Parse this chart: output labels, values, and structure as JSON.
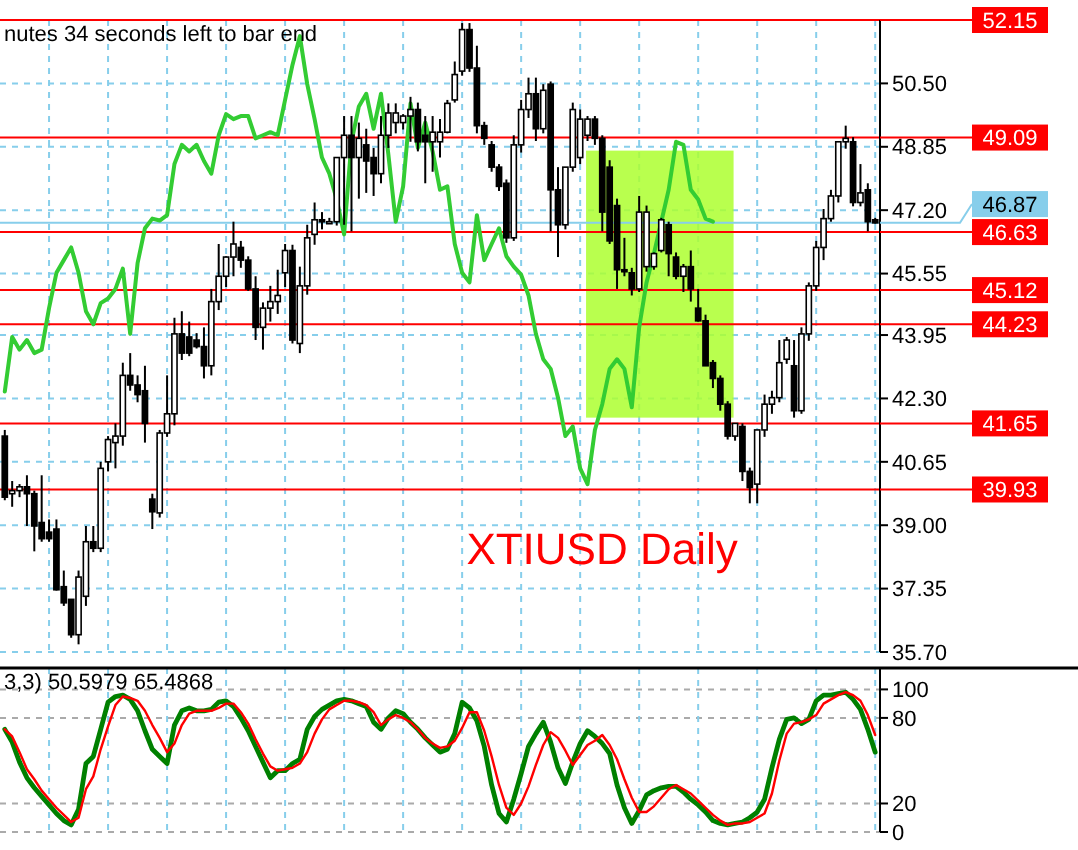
{
  "chart_data": [
    {
      "type": "candlestick",
      "title": "XTIUSD Daily",
      "annotations": [
        "nutes 34 seconds left to bar end"
      ],
      "categories": [
        null,
        null,
        null,
        null,
        null,
        null,
        null,
        null,
        null,
        null,
        null,
        null,
        null,
        null,
        null,
        null,
        null,
        null,
        null,
        null,
        null,
        null,
        null,
        null,
        null,
        null,
        null,
        null,
        null,
        null,
        null,
        null,
        null,
        null,
        null,
        null,
        null,
        null,
        null,
        null,
        null,
        null,
        null,
        null,
        null,
        null,
        null,
        null,
        null,
        null,
        null,
        null,
        null,
        null,
        null,
        null,
        null,
        null,
        null,
        null,
        null,
        null,
        null,
        null,
        null,
        null,
        null,
        null,
        null,
        null,
        null,
        null,
        null,
        null,
        null,
        null,
        null,
        null,
        null,
        null,
        null,
        null,
        null,
        null,
        null,
        null,
        null,
        null,
        null,
        null,
        null,
        null,
        null,
        null,
        null,
        null,
        null,
        null,
        null,
        null,
        null,
        null,
        null,
        null,
        null,
        null,
        null,
        null,
        null,
        null,
        null,
        null,
        null,
        null,
        null,
        null,
        null,
        null,
        null
      ],
      "ohlc": [
        [
          41.32,
          41.48,
          39.65,
          39.73
        ],
        [
          39.82,
          40.15,
          39.48,
          39.9
        ],
        [
          39.9,
          40.07,
          39.73,
          40.0
        ],
        [
          40.0,
          40.3,
          38.98,
          39.82
        ],
        [
          39.82,
          39.9,
          38.32,
          38.98
        ],
        [
          39.07,
          40.3,
          38.57,
          38.65
        ],
        [
          38.82,
          39.15,
          38.57,
          38.65
        ],
        [
          38.9,
          39.15,
          37.3,
          37.32
        ],
        [
          37.4,
          37.82,
          36.9,
          36.98
        ],
        [
          37.07,
          37.07,
          36.07,
          36.15
        ],
        [
          36.15,
          37.82,
          35.9,
          37.65
        ],
        [
          37.15,
          38.98,
          36.9,
          38.57
        ],
        [
          38.57,
          38.98,
          38.3,
          38.4
        ],
        [
          38.4,
          40.65,
          38.3,
          40.48
        ],
        [
          40.65,
          41.32,
          40.4,
          41.23
        ],
        [
          41.15,
          41.65,
          40.48,
          41.32
        ],
        [
          41.32,
          43.23,
          41.07,
          42.9
        ],
        [
          42.9,
          43.48,
          42.5,
          42.65
        ],
        [
          42.65,
          42.9,
          42.2,
          42.4
        ],
        [
          42.5,
          43.15,
          41.15,
          41.65
        ],
        [
          39.68,
          39.82,
          38.9,
          39.35
        ],
        [
          39.32,
          41.48,
          39.2,
          41.4
        ],
        [
          41.4,
          42.9,
          41.3,
          41.9
        ],
        [
          41.9,
          44.4,
          41.6,
          43.98
        ],
        [
          43.98,
          44.57,
          43.3,
          43.48
        ],
        [
          43.9,
          44.3,
          43.4,
          43.48
        ],
        [
          43.82,
          44.0,
          43.6,
          43.65
        ],
        [
          43.65,
          44.15,
          42.82,
          43.15
        ],
        [
          43.15,
          45.15,
          42.9,
          44.82
        ],
        [
          44.82,
          46.32,
          44.6,
          45.48
        ],
        [
          45.48,
          46.0,
          45.2,
          45.98
        ],
        [
          45.98,
          46.9,
          45.48,
          46.32
        ],
        [
          46.23,
          46.4,
          45.7,
          45.9
        ],
        [
          45.9,
          46.0,
          45.1,
          45.15
        ],
        [
          45.15,
          45.48,
          43.82,
          44.15
        ],
        [
          44.15,
          44.8,
          43.57,
          44.65
        ],
        [
          44.65,
          45.23,
          44.3,
          44.82
        ],
        [
          44.82,
          45.65,
          44.5,
          44.98
        ],
        [
          45.57,
          46.32,
          45.2,
          46.15
        ],
        [
          46.15,
          46.3,
          43.73,
          43.82
        ],
        [
          43.73,
          45.73,
          43.48,
          45.23
        ],
        [
          45.23,
          46.82,
          45.0,
          46.48
        ],
        [
          46.57,
          47.4,
          46.3,
          46.95
        ],
        [
          46.95,
          47.15,
          46.7,
          46.9
        ],
        [
          46.9,
          47.0,
          46.85,
          46.9
        ],
        [
          46.9,
          48.57,
          46.8,
          48.57
        ],
        [
          48.57,
          49.65,
          46.82,
          49.15
        ],
        [
          49.15,
          49.65,
          46.65,
          48.57
        ],
        [
          48.57,
          49.48,
          47.5,
          49.07
        ],
        [
          48.9,
          49.32,
          47.65,
          48.48
        ],
        [
          48.57,
          48.82,
          47.57,
          48.15
        ],
        [
          48.15,
          49.65,
          47.9,
          49.15
        ],
        [
          49.15,
          49.98,
          48.82,
          49.73
        ],
        [
          49.48,
          49.98,
          49.2,
          49.73
        ],
        [
          49.48,
          49.7,
          49.3,
          49.65
        ],
        [
          49.65,
          50.15,
          48.98,
          49.82
        ],
        [
          49.82,
          50.0,
          48.73,
          48.98
        ],
        [
          49.15,
          49.65,
          47.9,
          48.98
        ],
        [
          48.98,
          49.65,
          48.2,
          49.23
        ],
        [
          48.98,
          49.57,
          48.57,
          49.23
        ],
        [
          49.23,
          50.07,
          49.2,
          49.98
        ],
        [
          50.07,
          51.07,
          50.0,
          50.73
        ],
        [
          50.82,
          52.07,
          50.7,
          51.9
        ],
        [
          51.9,
          52.07,
          50.8,
          50.9
        ],
        [
          50.9,
          51.48,
          49.2,
          49.4
        ],
        [
          49.4,
          49.5,
          48.9,
          49.07
        ],
        [
          48.9,
          49.0,
          48.2,
          48.32
        ],
        [
          48.32,
          48.4,
          47.7,
          47.82
        ],
        [
          47.9,
          48.0,
          46.35,
          46.48
        ],
        [
          46.48,
          49.15,
          46.4,
          48.9
        ],
        [
          48.9,
          50.07,
          48.7,
          49.82
        ],
        [
          49.82,
          50.65,
          49.6,
          50.23
        ],
        [
          50.23,
          50.65,
          49.0,
          49.32
        ],
        [
          49.32,
          50.48,
          49.2,
          50.32
        ],
        [
          50.48,
          50.55,
          46.65,
          47.73
        ],
        [
          47.73,
          48.32,
          45.98,
          46.82
        ],
        [
          46.82,
          48.32,
          46.7,
          48.32
        ],
        [
          48.32,
          50.0,
          48.2,
          49.82
        ],
        [
          48.57,
          49.82,
          48.4,
          49.57
        ],
        [
          49.15,
          49.65,
          49.0,
          49.57
        ],
        [
          49.57,
          49.65,
          48.9,
          49.07
        ],
        [
          49.07,
          49.15,
          46.65,
          47.15
        ],
        [
          48.32,
          48.5,
          46.32,
          46.4
        ],
        [
          47.32,
          47.5,
          45.15,
          45.65
        ],
        [
          45.65,
          46.48,
          45.48,
          45.6
        ],
        [
          45.57,
          45.7,
          44.98,
          45.15
        ],
        [
          45.15,
          47.57,
          45.07,
          47.15
        ],
        [
          45.73,
          47.32,
          45.6,
          47.15
        ],
        [
          45.73,
          46.1,
          45.65,
          46.07
        ],
        [
          46.15,
          47.0,
          46.1,
          46.95
        ],
        [
          46.82,
          46.9,
          45.48,
          46.07
        ],
        [
          45.98,
          46.1,
          45.4,
          45.48
        ],
        [
          45.48,
          45.8,
          45.07,
          45.73
        ],
        [
          45.73,
          46.15,
          44.82,
          45.15
        ],
        [
          44.65,
          45.15,
          44.3,
          44.32
        ],
        [
          44.32,
          44.48,
          43.15,
          43.15
        ],
        [
          43.23,
          43.3,
          42.57,
          42.82
        ],
        [
          42.82,
          42.9,
          41.98,
          42.15
        ],
        [
          42.15,
          42.23,
          41.23,
          41.32
        ],
        [
          41.32,
          41.65,
          41.2,
          41.65
        ],
        [
          41.57,
          41.65,
          40.15,
          40.4
        ],
        [
          40.4,
          40.5,
          39.57,
          39.98
        ],
        [
          40.07,
          41.48,
          39.57,
          41.48
        ],
        [
          41.48,
          42.4,
          41.3,
          42.15
        ],
        [
          42.15,
          42.5,
          41.9,
          42.32
        ],
        [
          42.32,
          43.82,
          42.2,
          43.23
        ],
        [
          43.32,
          43.9,
          43.2,
          43.82
        ],
        [
          43.15,
          43.82,
          41.8,
          41.98
        ],
        [
          41.98,
          44.15,
          41.9,
          43.98
        ],
        [
          43.98,
          45.32,
          43.8,
          45.23
        ],
        [
          45.23,
          46.4,
          45.1,
          46.23
        ],
        [
          46.23,
          47.23,
          45.9,
          46.98
        ],
        [
          46.98,
          47.73,
          46.9,
          47.57
        ],
        [
          47.57,
          48.98,
          47.4,
          48.98
        ],
        [
          48.98,
          49.4,
          48.8,
          49.07
        ],
        [
          48.98,
          49.1,
          47.3,
          47.4
        ],
        [
          47.4,
          48.4,
          47.3,
          47.65
        ],
        [
          47.73,
          47.9,
          46.65,
          46.9
        ],
        [
          46.95,
          47.0,
          46.85,
          46.87
        ]
      ],
      "series": [
        {
          "type": "line",
          "color": "#33cc33",
          "values": [
            42.48,
            43.9,
            43.57,
            43.82,
            43.48,
            43.57,
            44.65,
            45.57,
            45.9,
            46.23,
            45.57,
            44.57,
            44.23,
            44.78,
            44.9,
            45.15,
            45.68,
            43.98,
            45.82,
            46.73,
            46.98,
            46.93,
            47.07,
            48.4,
            48.9,
            48.73,
            48.9,
            48.48,
            48.15,
            49.15,
            49.7,
            49.57,
            49.65,
            49.65,
            49.07,
            49.15,
            49.23,
            49.15,
            50.07,
            50.98,
            51.73,
            50.48,
            49.57,
            48.57,
            48.15,
            47.48,
            46.57,
            48.98,
            49.9,
            50.23,
            49.32,
            50.23,
            48.65,
            46.9,
            47.82,
            49.98,
            48.82,
            49.48,
            48.73,
            47.73,
            47.82,
            46.32,
            45.57,
            45.32,
            47.07,
            45.9,
            46.32,
            46.73,
            46.0,
            45.73,
            45.52,
            44.98,
            43.98,
            43.32,
            43.07,
            42.32,
            41.32,
            41.57,
            40.48,
            40.07,
            41.48,
            42.15,
            43.07,
            43.32,
            43.07,
            42.07,
            44.15,
            45.32,
            46.07,
            46.9,
            47.73,
            48.98,
            48.9,
            47.73,
            47.48,
            46.98,
            46.9,
            null,
            null,
            null,
            null,
            null,
            null,
            null,
            null,
            null,
            null,
            null,
            null,
            null,
            null,
            null,
            null,
            null,
            null,
            null,
            null,
            null,
            null
          ]
        }
      ],
      "ylim": [
        35.7,
        52.15
      ],
      "yticks": [
        {
          "value": 35.7,
          "label": "35.70"
        },
        {
          "value": 37.35,
          "label": "37.35"
        },
        {
          "value": 39.0,
          "label": "39.00"
        },
        {
          "value": 40.65,
          "label": "40.65"
        },
        {
          "value": 42.3,
          "label": "42.30"
        },
        {
          "value": 43.95,
          "label": "43.95"
        },
        {
          "value": 45.55,
          "label": "45.55"
        },
        {
          "value": 47.2,
          "label": "47.20"
        },
        {
          "value": 48.85,
          "label": "48.85"
        },
        {
          "value": 50.5,
          "label": "50.50"
        }
      ],
      "ref_lines": [
        {
          "axis": "y",
          "value": 52.15,
          "label": "52.15",
          "color": "#ff0000"
        },
        {
          "axis": "y",
          "value": 49.09,
          "label": "49.09",
          "color": "#ff0000"
        },
        {
          "axis": "y",
          "value": 46.87,
          "label": "46.87",
          "color": "#87ceeb"
        },
        {
          "axis": "y",
          "value": 46.63,
          "label": "46.63",
          "color": "#ff0000"
        },
        {
          "axis": "y",
          "value": 45.12,
          "label": "45.12",
          "color": "#ff0000"
        },
        {
          "axis": "y",
          "value": 44.23,
          "label": "44.23",
          "color": "#ff0000"
        },
        {
          "axis": "y",
          "value": 41.65,
          "label": "41.65",
          "color": "#ff0000"
        },
        {
          "axis": "y",
          "value": 39.93,
          "label": "39.93",
          "color": "#ff0000"
        }
      ],
      "grid": true,
      "tick_labels": "y"
    },
    {
      "type": "line",
      "annotations": [
        "3,3) 50.5979 65.4868"
      ],
      "categories": [
        null,
        null,
        null,
        null,
        null,
        null,
        null,
        null,
        null,
        null,
        null,
        null,
        null,
        null,
        null,
        null,
        null,
        null,
        null,
        null,
        null,
        null,
        null,
        null,
        null,
        null,
        null,
        null,
        null,
        null,
        null,
        null,
        null,
        null,
        null,
        null,
        null,
        null,
        null,
        null,
        null,
        null,
        null,
        null,
        null,
        null,
        null,
        null,
        null,
        null,
        null,
        null,
        null,
        null,
        null,
        null,
        null,
        null,
        null,
        null,
        null,
        null,
        null,
        null,
        null,
        null,
        null,
        null,
        null,
        null,
        null,
        null,
        null,
        null,
        null,
        null,
        null,
        null,
        null,
        null,
        null,
        null,
        null,
        null,
        null,
        null,
        null,
        null,
        null,
        null,
        null,
        null,
        null,
        null,
        null,
        null,
        null,
        null,
        null,
        null,
        null,
        null,
        null,
        null,
        null,
        null,
        null,
        null,
        null,
        null,
        null,
        null,
        null,
        null,
        null,
        null,
        null,
        null,
        null
      ],
      "series": [
        {
          "color": "#008000",
          "values": [
            72,
            63,
            49,
            38,
            31,
            25,
            19,
            13,
            8,
            5,
            16,
            48,
            53,
            72,
            91,
            95,
            96,
            93,
            85,
            71,
            58,
            53,
            48,
            75,
            85,
            87,
            85,
            85,
            86,
            91,
            92,
            88,
            80,
            71,
            60,
            49,
            38,
            43,
            43,
            48,
            51,
            72,
            81,
            86,
            89,
            92,
            93,
            92,
            90,
            88,
            77,
            72,
            80,
            85,
            83,
            77,
            72,
            66,
            61,
            56,
            58,
            69,
            91,
            87,
            78,
            60,
            33,
            13,
            7,
            23,
            41,
            60,
            69,
            77,
            63,
            45,
            34,
            49,
            62,
            71,
            67,
            62,
            55,
            33,
            17,
            6,
            15,
            26,
            29,
            31,
            32,
            32,
            28,
            23,
            19,
            14,
            8,
            6,
            5,
            6,
            7,
            10,
            14,
            23,
            45,
            65,
            79,
            80,
            76,
            79,
            92,
            96,
            96,
            97,
            98,
            93,
            86,
            72,
            56
          ]
        },
        {
          "color": "#ff0000",
          "values": [
            72,
            67,
            56,
            44,
            37,
            29,
            23,
            17,
            12,
            7,
            10,
            30,
            39,
            58,
            74,
            89,
            95,
            94,
            92,
            85,
            75,
            66,
            56,
            62,
            75,
            83,
            85,
            85,
            85,
            87,
            90,
            90,
            84,
            76,
            65,
            55,
            46,
            43,
            44,
            45,
            48,
            56,
            69,
            79,
            86,
            89,
            92,
            92,
            91,
            89,
            84,
            75,
            79,
            82,
            80,
            77,
            72,
            66,
            62,
            59,
            60,
            64,
            73,
            84,
            84,
            71,
            53,
            33,
            17,
            12,
            20,
            32,
            47,
            61,
            70,
            66,
            57,
            47,
            54,
            61,
            64,
            68,
            61,
            51,
            37,
            24,
            14,
            14,
            18,
            24,
            30,
            33,
            30,
            27,
            22,
            17,
            12,
            8,
            5,
            6,
            6,
            7,
            10,
            13,
            27,
            50,
            69,
            76,
            77,
            79,
            82,
            90,
            93,
            96,
            98,
            96,
            92,
            82,
            68
          ]
        }
      ],
      "ylim": [
        0,
        115
      ],
      "yticks": [
        0,
        20,
        80,
        100
      ],
      "grid": true,
      "tick_labels": "y"
    }
  ]
}
